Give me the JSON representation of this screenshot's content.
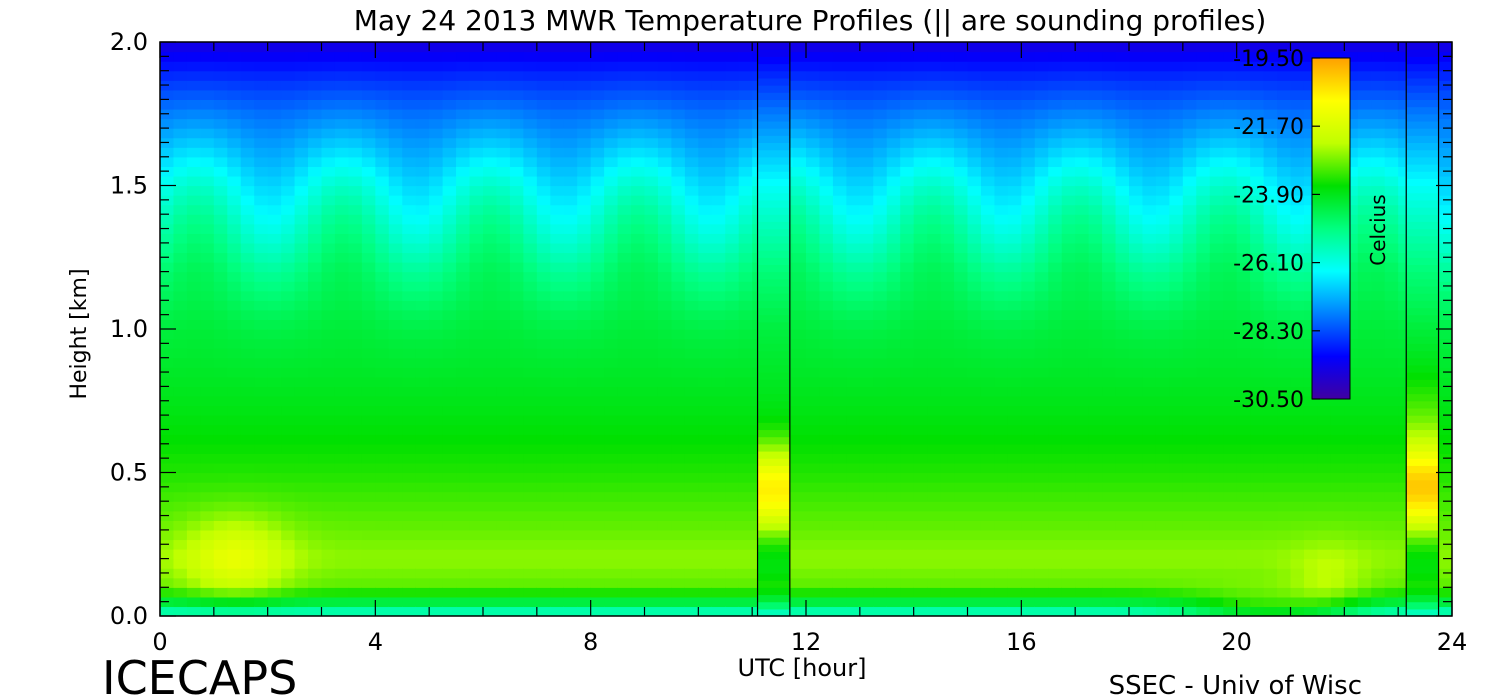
{
  "chart_data": {
    "type": "heatmap",
    "title": "May 24 2013 MWR Temperature Profiles (|| are sounding profiles)",
    "xlabel": "UTC [hour]",
    "ylabel": "Height [km]",
    "xlim": [
      0,
      24
    ],
    "ylim": [
      0,
      2.0
    ],
    "x_ticks": [
      0,
      4,
      8,
      12,
      16,
      20,
      24
    ],
    "x_tick_labels": [
      "0",
      "4",
      "8",
      "12",
      "16",
      "20",
      "24"
    ],
    "y_ticks": [
      0.0,
      0.5,
      1.0,
      1.5,
      2.0
    ],
    "y_tick_labels": [
      "0.0",
      "0.5",
      "1.0",
      "1.5",
      "2.0"
    ],
    "colorbar": {
      "label": "Celcius",
      "min": -30.5,
      "max": -19.5,
      "ticks": [
        -19.5,
        -21.7,
        -23.9,
        -26.1,
        -28.3,
        -30.5
      ],
      "tick_labels": [
        "-19.50",
        "-21.70",
        "-23.90",
        "-26.10",
        "-28.30",
        "-30.50"
      ]
    },
    "sounding_profiles_utc": [
      {
        "start": 11.1,
        "end": 11.7
      },
      {
        "start": 23.15,
        "end": 23.75
      }
    ],
    "profile_temperature_c": {
      "height_km": [
        0.0,
        0.05,
        0.1,
        0.2,
        0.3,
        0.5,
        0.7,
        1.0,
        1.2,
        1.4,
        1.5,
        1.6,
        1.75,
        1.9,
        2.0
      ],
      "typical": [
        -26.0,
        -24.3,
        -23.0,
        -22.6,
        -22.9,
        -23.4,
        -23.8,
        -24.3,
        -24.9,
        -25.8,
        -26.3,
        -26.9,
        -27.8,
        -28.8,
        -29.6
      ]
    },
    "grid": false,
    "legend": "none"
  },
  "footer": {
    "left": "ICECAPS",
    "right": "SSEC - Univ of Wisc"
  },
  "colors": {
    "colormap": [
      "#4000a0",
      "#0000ff",
      "#0080ff",
      "#00ffff",
      "#00ff80",
      "#00e000",
      "#c0ff00",
      "#ffff00",
      "#ffa000"
    ],
    "axes": "#000000",
    "background": "#ffffff"
  }
}
